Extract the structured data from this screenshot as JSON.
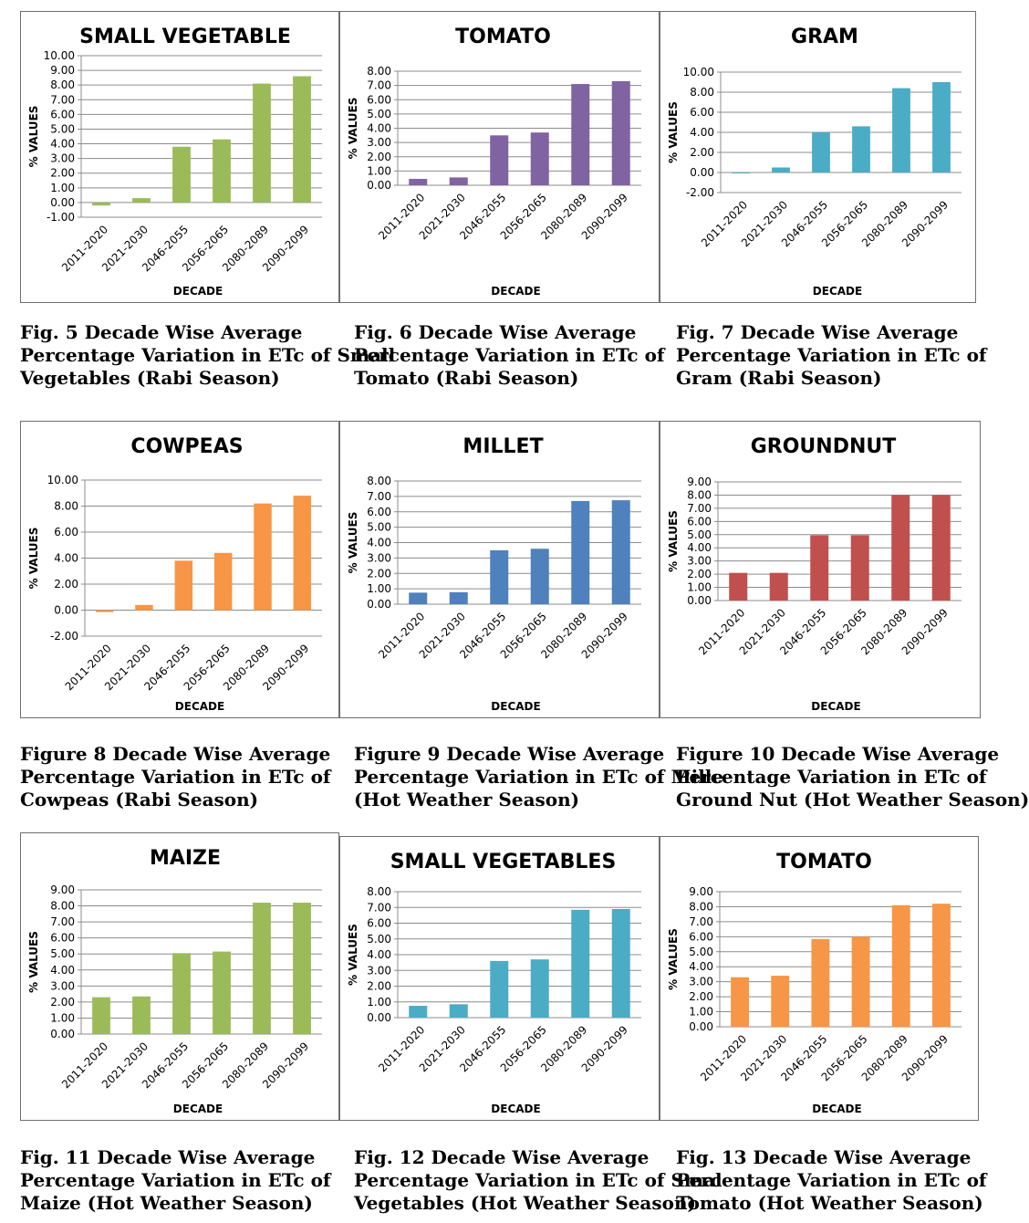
{
  "chart_data": [
    {
      "type": "bar",
      "title": "SMALL VEGETABLE",
      "xlabel": "DECADE",
      "ylabel": "% VALUES",
      "ylim": [
        -1,
        10
      ],
      "ystep": 1,
      "color": "#9bbb59",
      "categories": [
        "2011-2020",
        "2021-2030",
        "2046-2055",
        "2056-2065",
        "2080-2089",
        "2090-2099"
      ],
      "values": [
        -0.2,
        0.3,
        3.8,
        4.3,
        8.1,
        8.6
      ],
      "ticks": [
        "-1.00",
        "0.00",
        "1.00",
        "2.00",
        "3.00",
        "4.00",
        "5.00",
        "6.00",
        "7.00",
        "8.00",
        "9.00",
        "10.00"
      ]
    },
    {
      "type": "bar",
      "title": "TOMATO",
      "xlabel": "DECADE",
      "ylabel": "% VALUES",
      "ylim": [
        0,
        8
      ],
      "ystep": 1,
      "color": "#8064a2",
      "categories": [
        "2011-2020",
        "2021-2030",
        "2046-2055",
        "2056-2065",
        "2080-2089",
        "2090-2099"
      ],
      "values": [
        0.45,
        0.55,
        3.5,
        3.7,
        7.1,
        7.3
      ],
      "ticks": [
        "0.00",
        "1.00",
        "2.00",
        "3.00",
        "4.00",
        "5.00",
        "6.00",
        "7.00",
        "8.00"
      ]
    },
    {
      "type": "bar",
      "title": "GRAM",
      "xlabel": "DECADE",
      "ylabel": "% VALUES",
      "ylim": [
        -2,
        10
      ],
      "ystep": 2,
      "color": "#4bacc6",
      "categories": [
        "2011-2020",
        "2021-2030",
        "2046-2055",
        "2056-2065",
        "2080-2089",
        "2090-2099"
      ],
      "values": [
        -0.05,
        0.5,
        4.0,
        4.6,
        8.4,
        9.0
      ],
      "ticks": [
        "-2.00",
        "0.00",
        "2.00",
        "4.00",
        "6.00",
        "8.00",
        "10.00"
      ]
    },
    {
      "type": "bar",
      "title": "COWPEAS",
      "xlabel": "DECADE",
      "ylabel": "% VALUES",
      "ylim": [
        -2,
        10
      ],
      "ystep": 2,
      "color": "#f79646",
      "categories": [
        "2011-2020",
        "2021-2030",
        "2046-2055",
        "2056-2065",
        "2080-2089",
        "2090-2099"
      ],
      "values": [
        -0.15,
        0.4,
        3.8,
        4.4,
        8.2,
        8.8
      ],
      "ticks": [
        "-2.00",
        "0.00",
        "2.00",
        "4.00",
        "6.00",
        "8.00",
        "10.00"
      ]
    },
    {
      "type": "bar",
      "title": "MILLET",
      "xlabel": "DECADE",
      "ylabel": "% VALUES",
      "ylim": [
        0,
        8
      ],
      "ystep": 1,
      "color": "#4f81bd",
      "categories": [
        "2011-2020",
        "2021-2030",
        "2046-2055",
        "2056-2065",
        "2080-2089",
        "2090-2099"
      ],
      "values": [
        0.75,
        0.78,
        3.5,
        3.6,
        6.7,
        6.75
      ],
      "ticks": [
        "0.00",
        "1.00",
        "2.00",
        "3.00",
        "4.00",
        "5.00",
        "6.00",
        "7.00",
        "8.00"
      ]
    },
    {
      "type": "bar",
      "title": "GROUNDNUT",
      "xlabel": "DECADE",
      "ylabel": "% VALUES",
      "ylim": [
        0,
        9
      ],
      "ystep": 1,
      "color": "#c0504d",
      "categories": [
        "2011-2020",
        "2021-2030",
        "2046-2055",
        "2056-2065",
        "2080-2089",
        "2090-2099"
      ],
      "values": [
        2.1,
        2.1,
        4.95,
        4.95,
        8.0,
        8.0
      ],
      "ticks": [
        "0.00",
        "1.00",
        "2.00",
        "3.00",
        "4.00",
        "5.00",
        "6.00",
        "7.00",
        "8.00",
        "9.00"
      ]
    },
    {
      "type": "bar",
      "title": "MAIZE",
      "xlabel": "DECADE",
      "ylabel": "% VALUES",
      "ylim": [
        0,
        9
      ],
      "ystep": 1,
      "color": "#9bbb59",
      "categories": [
        "2011-2020",
        "2021-2030",
        "2046-2055",
        "2056-2065",
        "2080-2089",
        "2090-2099"
      ],
      "values": [
        2.3,
        2.35,
        5.05,
        5.15,
        8.2,
        8.2
      ],
      "ticks": [
        "0.00",
        "1.00",
        "2.00",
        "3.00",
        "4.00",
        "5.00",
        "6.00",
        "7.00",
        "8.00",
        "9.00"
      ]
    },
    {
      "type": "bar",
      "title": "SMALL VEGETABLES",
      "xlabel": "DECADE",
      "ylabel": "% VALUES",
      "ylim": [
        0,
        8
      ],
      "ystep": 1,
      "color": "#4bacc6",
      "categories": [
        "2011-2020",
        "2021-2030",
        "2046-2055",
        "2056-2065",
        "2080-2089",
        "2090-2099"
      ],
      "values": [
        0.75,
        0.85,
        3.6,
        3.7,
        6.85,
        6.9
      ],
      "ticks": [
        "0.00",
        "1.00",
        "2.00",
        "3.00",
        "4.00",
        "5.00",
        "6.00",
        "7.00",
        "8.00"
      ]
    },
    {
      "type": "bar",
      "title": "TOMATO",
      "xlabel": "DECADE",
      "ylabel": "% VALUES",
      "ylim": [
        0,
        9
      ],
      "ystep": 1,
      "color": "#f79646",
      "categories": [
        "2011-2020",
        "2021-2030",
        "2046-2055",
        "2056-2065",
        "2080-2089",
        "2090-2099"
      ],
      "values": [
        3.3,
        3.4,
        5.85,
        6.0,
        8.1,
        8.2
      ],
      "ticks": [
        "0.00",
        "1.00",
        "2.00",
        "3.00",
        "4.00",
        "5.00",
        "6.00",
        "7.00",
        "8.00",
        "9.00"
      ]
    }
  ],
  "captions": [
    [
      "Fig. 5 Decade Wise Average",
      "Percentage Variation in ETc of Small",
      "Vegetables (Rabi Season)"
    ],
    [
      "Fig. 6 Decade Wise Average",
      "Percentage Variation in ETc of",
      "Tomato (Rabi Season)"
    ],
    [
      "Fig. 7 Decade Wise Average",
      "Percentage Variation in ETc of",
      "Gram (Rabi Season)"
    ],
    [
      "Figure 8 Decade Wise Average",
      "Percentage Variation in ETc of",
      "Cowpeas (Rabi Season)"
    ],
    [
      "Figure 9 Decade Wise Average",
      "Percentage Variation in ETc of Mille",
      " (Hot Weather Season)"
    ],
    [
      "Figure 10 Decade Wise Average",
      "Percentage Variation in ETc of",
      "Ground Nut (Hot Weather Season)"
    ],
    [
      "Fig.  11 Decade Wise Average",
      "Percentage Variation in ETc of",
      "Maize (Hot Weather Season)"
    ],
    [
      "Fig. 12 Decade Wise Average",
      "Percentage Variation in ETc of Smal",
      "Vegetables (Hot Weather Season)"
    ],
    [
      "Fig. 13 Decade Wise Average",
      "Percentage Variation in ETc of",
      "Tomato (Hot Weather Season)"
    ]
  ]
}
